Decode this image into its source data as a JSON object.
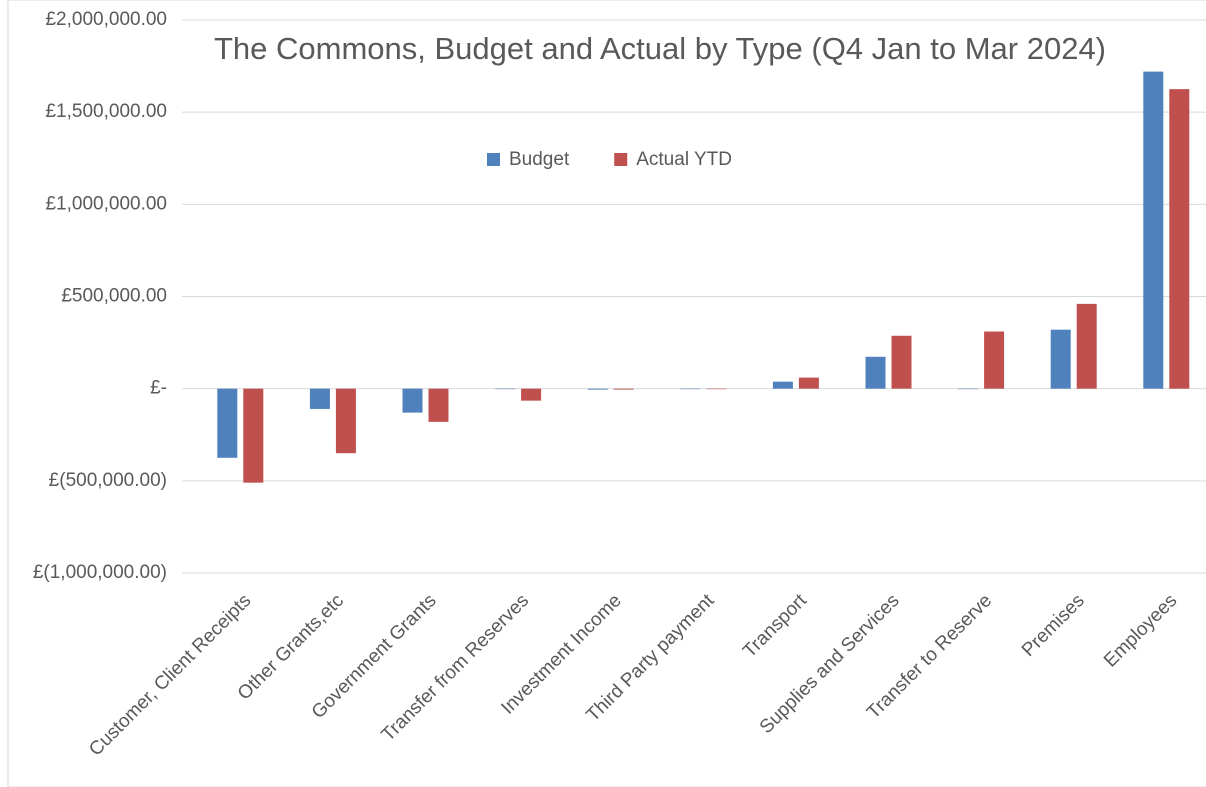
{
  "chart_data": {
    "type": "bar",
    "title": "The Commons, Budget and Actual by Type (Q4 Jan to Mar 2024)",
    "categories": [
      "Customer, Client Receipts",
      "Other Grants,etc",
      "Government Grants",
      "Transfer from Reserves",
      "Investment Income",
      "Third Party payment",
      "Transport",
      "Supplies and Services",
      "Transfer to Reserve",
      "Premises",
      "Employees"
    ],
    "series": [
      {
        "name": "Budget",
        "color": "#4f81bd",
        "values": [
          -375000,
          -110000,
          -130000,
          0,
          -5000,
          0,
          38000,
          173000,
          0,
          320000,
          1720000
        ]
      },
      {
        "name": "Actual YTD",
        "color": "#c0504d",
        "values": [
          -510000,
          -350000,
          -180000,
          -65000,
          -5000,
          0,
          60000,
          287000,
          310000,
          460000,
          1625000
        ]
      }
    ],
    "ylim": [
      -1000000,
      2000000
    ],
    "yticks": [
      {
        "value": -1000000,
        "label": "£(1,000,000.00)"
      },
      {
        "value": -500000,
        "label": "£(500,000.00)"
      },
      {
        "value": 0,
        "label": "£-"
      },
      {
        "value": 500000,
        "label": "£500,000.00"
      },
      {
        "value": 1000000,
        "label": "£1,000,000.00"
      },
      {
        "value": 1500000,
        "label": "£1,500,000.00"
      },
      {
        "value": 2000000,
        "label": "£2,000,000.00"
      }
    ],
    "grid": true,
    "legend": "top"
  }
}
